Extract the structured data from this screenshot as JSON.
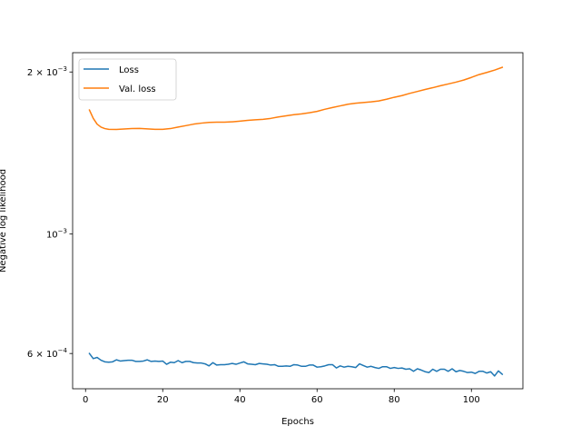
{
  "chart_data": {
    "type": "line",
    "title": "",
    "xlabel": "Epochs",
    "ylabel": "Negative log likelihood",
    "xlim": [
      -3.35,
      113.35
    ],
    "ylim": [
      0.000516,
      0.002172
    ],
    "yscale": "log",
    "grid": false,
    "legend_position": "top-left",
    "xticks": [
      0,
      20,
      40,
      60,
      80,
      100
    ],
    "xtick_labels": [
      "0",
      "20",
      "40",
      "60",
      "80",
      "100"
    ],
    "yticks": [
      0.0006,
      0.001,
      0.002
    ],
    "ytick_labels": [
      {
        "base": "6 × 10",
        "exp": "−4"
      },
      {
        "base": "10",
        "exp": "−3"
      },
      {
        "base": "2 × 10",
        "exp": "−3"
      }
    ],
    "series": [
      {
        "name": "Loss",
        "color": "#1f77b4",
        "points": [
          [
            1,
            0.0006
          ],
          [
            2,
            0.000587
          ],
          [
            3,
            0.00059
          ],
          [
            4,
            0.000583
          ],
          [
            5,
            0.000579
          ],
          [
            6,
            0.000578
          ],
          [
            7,
            0.000579
          ],
          [
            8,
            0.000584
          ],
          [
            9,
            0.000581
          ],
          [
            10,
            0.000582
          ],
          [
            11,
            0.000583
          ],
          [
            12,
            0.000583
          ],
          [
            13,
            0.00058
          ],
          [
            14,
            0.00058
          ],
          [
            15,
            0.000581
          ],
          [
            16,
            0.000584
          ],
          [
            17,
            0.00058
          ],
          [
            18,
            0.000581
          ],
          [
            19,
            0.00058
          ],
          [
            20,
            0.000581
          ],
          [
            21,
            0.000573
          ],
          [
            22,
            0.000578
          ],
          [
            23,
            0.000577
          ],
          [
            24,
            0.000582
          ],
          [
            25,
            0.000577
          ],
          [
            26,
            0.00058
          ],
          [
            27,
            0.00058
          ],
          [
            28,
            0.000577
          ],
          [
            29,
            0.000576
          ],
          [
            30,
            0.000576
          ],
          [
            31,
            0.000574
          ],
          [
            32,
            0.000569
          ],
          [
            33,
            0.000577
          ],
          [
            34,
            0.000571
          ],
          [
            35,
            0.000572
          ],
          [
            36,
            0.000572
          ],
          [
            37,
            0.000573
          ],
          [
            38,
            0.000575
          ],
          [
            39,
            0.000573
          ],
          [
            40,
            0.000576
          ],
          [
            41,
            0.000579
          ],
          [
            42,
            0.000574
          ],
          [
            43,
            0.000573
          ],
          [
            44,
            0.000572
          ],
          [
            45,
            0.000575
          ],
          [
            46,
            0.000574
          ],
          [
            47,
            0.000573
          ],
          [
            48,
            0.000571
          ],
          [
            49,
            0.000572
          ],
          [
            50,
            0.000568
          ],
          [
            51,
            0.000568
          ],
          [
            52,
            0.000569
          ],
          [
            53,
            0.000568
          ],
          [
            54,
            0.000572
          ],
          [
            55,
            0.000571
          ],
          [
            56,
            0.000568
          ],
          [
            57,
            0.000568
          ],
          [
            58,
            0.000571
          ],
          [
            59,
            0.000571
          ],
          [
            60,
            0.000566
          ],
          [
            61,
            0.000567
          ],
          [
            62,
            0.000569
          ],
          [
            63,
            0.000572
          ],
          [
            64,
            0.000572
          ],
          [
            65,
            0.000564
          ],
          [
            66,
            0.000569
          ],
          [
            67,
            0.000566
          ],
          [
            68,
            0.000568
          ],
          [
            69,
            0.000567
          ],
          [
            70,
            0.000565
          ],
          [
            71,
            0.000574
          ],
          [
            72,
            0.00057
          ],
          [
            73,
            0.000566
          ],
          [
            74,
            0.000568
          ],
          [
            75,
            0.000565
          ],
          [
            76,
            0.000563
          ],
          [
            77,
            0.000567
          ],
          [
            78,
            0.000567
          ],
          [
            79,
            0.000563
          ],
          [
            80,
            0.000565
          ],
          [
            81,
            0.000563
          ],
          [
            82,
            0.000564
          ],
          [
            83,
            0.000561
          ],
          [
            84,
            0.000562
          ],
          [
            85,
            0.000556
          ],
          [
            86,
            0.000562
          ],
          [
            87,
            0.000559
          ],
          [
            88,
            0.000555
          ],
          [
            89,
            0.000553
          ],
          [
            90,
            0.000561
          ],
          [
            91,
            0.000556
          ],
          [
            92,
            0.000561
          ],
          [
            93,
            0.000561
          ],
          [
            94,
            0.000556
          ],
          [
            95,
            0.000562
          ],
          [
            96,
            0.000555
          ],
          [
            97,
            0.000558
          ],
          [
            98,
            0.000556
          ],
          [
            99,
            0.000553
          ],
          [
            100,
            0.000554
          ],
          [
            101,
            0.000551
          ],
          [
            102,
            0.000556
          ],
          [
            103,
            0.000556
          ],
          [
            104,
            0.000552
          ],
          [
            105,
            0.000555
          ],
          [
            106,
            0.000545
          ],
          [
            107,
            0.000557
          ],
          [
            108,
            0.000549
          ]
        ]
      },
      {
        "name": "Val. loss",
        "color": "#ff7f0e",
        "points": [
          [
            1,
            0.0017
          ],
          [
            2,
            0.00164
          ],
          [
            3,
            0.0016
          ],
          [
            4,
            0.00158
          ],
          [
            5,
            0.00157
          ],
          [
            6,
            0.001565
          ],
          [
            8,
            0.001564
          ],
          [
            10,
            0.001567
          ],
          [
            12,
            0.00157
          ],
          [
            14,
            0.001571
          ],
          [
            16,
            0.001568
          ],
          [
            18,
            0.001565
          ],
          [
            20,
            0.001565
          ],
          [
            22,
            0.00157
          ],
          [
            24,
            0.00158
          ],
          [
            26,
            0.00159
          ],
          [
            28,
            0.0016
          ],
          [
            30,
            0.001607
          ],
          [
            32,
            0.001612
          ],
          [
            34,
            0.001614
          ],
          [
            36,
            0.001614
          ],
          [
            38,
            0.001616
          ],
          [
            40,
            0.001621
          ],
          [
            42,
            0.001626
          ],
          [
            44,
            0.00163
          ],
          [
            46,
            0.001633
          ],
          [
            48,
            0.00164
          ],
          [
            50,
            0.00165
          ],
          [
            52,
            0.001658
          ],
          [
            54,
            0.001666
          ],
          [
            56,
            0.001672
          ],
          [
            58,
            0.00168
          ],
          [
            60,
            0.00169
          ],
          [
            62,
            0.001705
          ],
          [
            64,
            0.001718
          ],
          [
            66,
            0.00173
          ],
          [
            68,
            0.001742
          ],
          [
            70,
            0.00175
          ],
          [
            72,
            0.001755
          ],
          [
            74,
            0.00176
          ],
          [
            76,
            0.001767
          ],
          [
            78,
            0.00178
          ],
          [
            80,
            0.001795
          ],
          [
            82,
            0.001808
          ],
          [
            84,
            0.001825
          ],
          [
            86,
            0.00184
          ],
          [
            88,
            0.001856
          ],
          [
            90,
            0.00187
          ],
          [
            92,
            0.001886
          ],
          [
            94,
            0.0019
          ],
          [
            96,
            0.001915
          ],
          [
            98,
            0.001932
          ],
          [
            100,
            0.001954
          ],
          [
            102,
            0.001978
          ],
          [
            104,
            0.001996
          ],
          [
            106,
            0.002016
          ],
          [
            108,
            0.00204
          ]
        ]
      }
    ]
  }
}
